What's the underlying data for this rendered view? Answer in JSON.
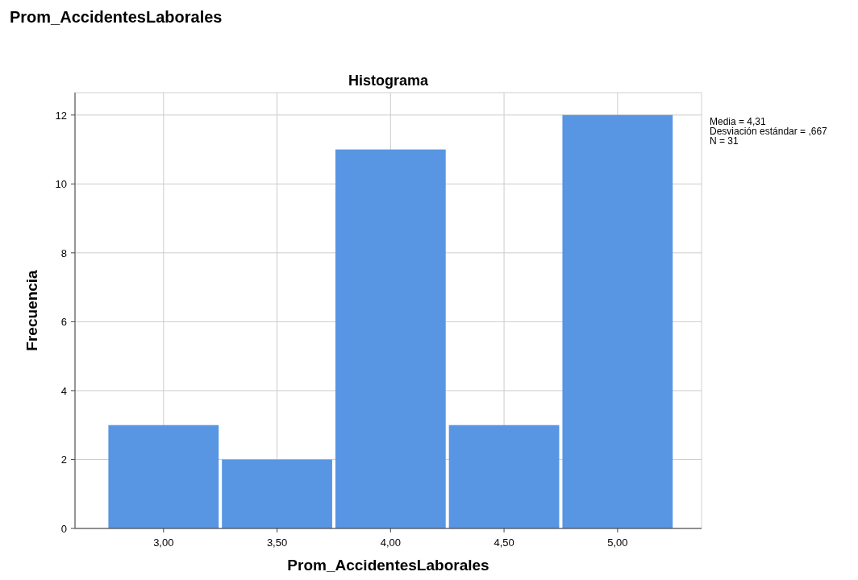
{
  "chart_data": {
    "type": "histogram",
    "title": "Prom_AccidentesLaborales",
    "subtitle": "Histograma",
    "xlabel": "Prom_AccidentesLaborales",
    "ylabel": "Frecuencia",
    "bins": [
      2.75,
      3.25,
      3.75,
      4.25,
      4.75,
      5.25
    ],
    "values": [
      3,
      2,
      11,
      3,
      12
    ],
    "color": "#5895e3",
    "xlim": [
      2.61,
      5.37
    ],
    "xticks": [
      {
        "value": 3,
        "label": "3,00"
      },
      {
        "value": 3.5,
        "label": "3,50"
      },
      {
        "value": 4,
        "label": "4,00"
      },
      {
        "value": 4.5,
        "label": "4,50"
      },
      {
        "value": 5,
        "label": "5,00"
      }
    ],
    "ylim": [
      0,
      12.65
    ],
    "yticks": [
      0,
      2,
      4,
      6,
      8,
      10,
      12
    ],
    "grid": true,
    "annotations": [
      "Media = 4,31",
      "Desviación estándar = ,667",
      "N = 31"
    ]
  }
}
